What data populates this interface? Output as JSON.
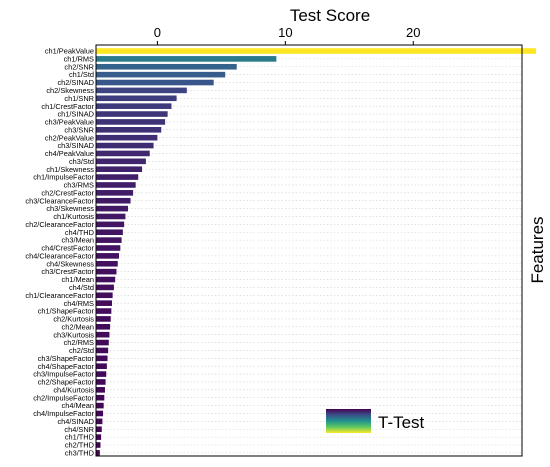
{
  "chart_data": {
    "type": "bar",
    "orientation": "horizontal",
    "title": "",
    "xlabel": "Test Score",
    "ylabel": "Features",
    "xlim": [
      -4.8,
      28.5
    ],
    "xticks": [
      0,
      10,
      20
    ],
    "x_axis_position": "top",
    "grid": "horizontal dotted",
    "legend": {
      "position": "bottom-right",
      "entries": [
        "T-Test"
      ]
    },
    "colormap": "viridis",
    "categories": [
      "ch1/PeakValue",
      "ch1/RMS",
      "ch2/SNR",
      "ch1/Std",
      "ch2/SINAD",
      "ch2/Skewness",
      "ch1/SNR",
      "ch1/CrestFactor",
      "ch1/SINAD",
      "ch3/PeakValue",
      "ch3/SNR",
      "ch2/PeakValue",
      "ch3/SINAD",
      "ch4/PeakValue",
      "ch3/Std",
      "ch1/Skewness",
      "ch1/ImpulseFactor",
      "ch3/RMS",
      "ch2/CrestFactor",
      "ch3/ClearanceFactor",
      "ch3/Skewness",
      "ch1/Kurtosis",
      "ch2/ClearanceFactor",
      "ch4/THD",
      "ch3/Mean",
      "ch4/CrestFactor",
      "ch4/ClearanceFactor",
      "ch4/Skewness",
      "ch3/CrestFactor",
      "ch1/Mean",
      "ch4/Std",
      "ch1/ClearanceFactor",
      "ch4/RMS",
      "ch1/ShapeFactor",
      "ch2/Kurtosis",
      "ch2/Mean",
      "ch3/Kurtosis",
      "ch2/RMS",
      "ch2/Std",
      "ch3/ShapeFactor",
      "ch4/ShapeFactor",
      "ch3/ImpulseFactor",
      "ch2/ShapeFactor",
      "ch4/Kurtosis",
      "ch2/ImpulseFactor",
      "ch4/Mean",
      "ch4/ImpulseFactor",
      "ch4/SINAD",
      "ch4/SNR",
      "ch1/THD",
      "ch2/THD",
      "ch3/THD"
    ],
    "values": [
      29.6,
      9.3,
      6.2,
      5.3,
      4.4,
      2.3,
      1.5,
      1.1,
      0.8,
      0.6,
      0.3,
      0.0,
      -0.3,
      -0.6,
      -0.9,
      -1.2,
      -1.5,
      -1.7,
      -1.9,
      -2.1,
      -2.3,
      -2.5,
      -2.6,
      -2.7,
      -2.8,
      -2.9,
      -3.0,
      -3.1,
      -3.2,
      -3.3,
      -3.4,
      -3.5,
      -3.55,
      -3.6,
      -3.65,
      -3.7,
      -3.75,
      -3.8,
      -3.85,
      -3.9,
      -3.95,
      -4.0,
      -4.05,
      -4.1,
      -4.15,
      -4.2,
      -4.25,
      -4.3,
      -4.35,
      -4.4,
      -4.45,
      -4.5
    ]
  }
}
